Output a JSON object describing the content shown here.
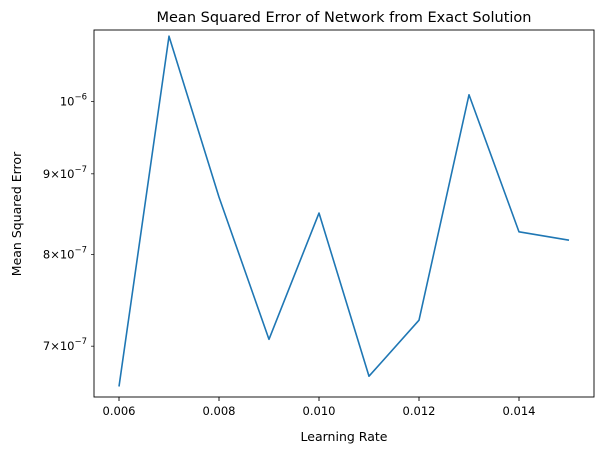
{
  "chart_data": {
    "type": "line",
    "title": "Mean Squared Error of Network from Exact Solution",
    "xlabel": "Learning Rate",
    "ylabel": "Mean Squared Error",
    "yscale": "log",
    "xlim": [
      0.0055,
      0.0155
    ],
    "ylim": [
      6.5e-07,
      1.11e-06
    ],
    "grid": false,
    "legend": "none",
    "x_ticks": [
      {
        "value": 0.006,
        "label": "0.006"
      },
      {
        "value": 0.008,
        "label": "0.008"
      },
      {
        "value": 0.01,
        "label": "0.010"
      },
      {
        "value": 0.012,
        "label": "0.012"
      },
      {
        "value": 0.014,
        "label": "0.014"
      }
    ],
    "y_ticks": [
      {
        "value": 7e-07,
        "mant": "7",
        "base": "10",
        "exp": "−7"
      },
      {
        "value": 8e-07,
        "mant": "8",
        "base": "10",
        "exp": "−7"
      },
      {
        "value": 9e-07,
        "mant": "9",
        "base": "10",
        "exp": "−7"
      },
      {
        "value": 1e-06,
        "mant": "",
        "base": "10",
        "exp": "−6"
      }
    ],
    "line_color": "#1f77b4",
    "series": [
      {
        "x": [
          0.006,
          0.007,
          0.008,
          0.009,
          0.01,
          0.011,
          0.012,
          0.013,
          0.014,
          0.015
        ],
        "values": [
          6.6e-07,
          1.1e-06,
          8.7e-07,
          7.07e-07,
          8.5e-07,
          6.7e-07,
          7.27e-07,
          1.01e-06,
          8.27e-07,
          8.17e-07
        ]
      }
    ]
  }
}
